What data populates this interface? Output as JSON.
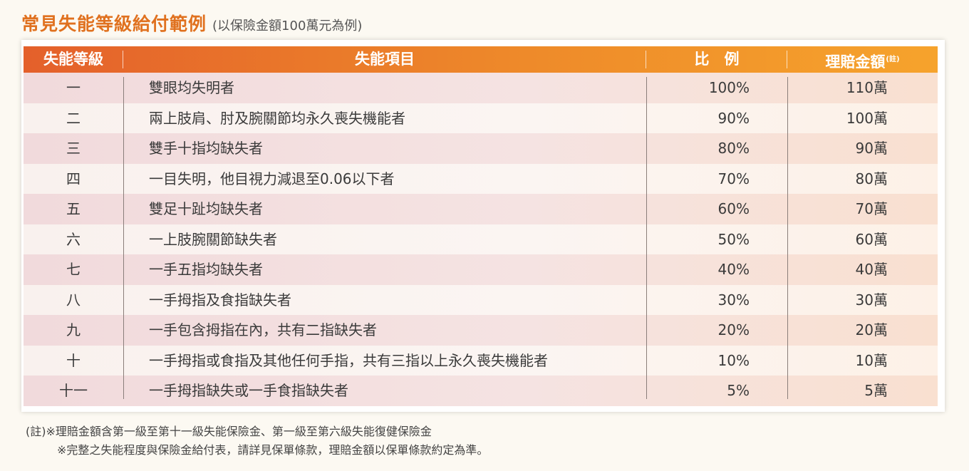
{
  "title": {
    "main": "常見失能等級給付範例",
    "sub": "(以保險金額100萬元為例)"
  },
  "table": {
    "headers": {
      "level": "失能等級",
      "item": "失能項目",
      "ratio": "比　例",
      "amount": "理賠金額",
      "amount_note": "(註)"
    },
    "rows": [
      {
        "level": "一",
        "item": "雙眼均失明者",
        "ratio": "100%",
        "amount": "110萬"
      },
      {
        "level": "二",
        "item": "兩上肢肩、肘及腕關節均永久喪失機能者",
        "ratio": "90%",
        "amount": "100萬"
      },
      {
        "level": "三",
        "item": "雙手十指均缺失者",
        "ratio": "80%",
        "amount": "90萬"
      },
      {
        "level": "四",
        "item": "一目失明，他目視力減退至0.06以下者",
        "ratio": "70%",
        "amount": "80萬"
      },
      {
        "level": "五",
        "item": "雙足十趾均缺失者",
        "ratio": "60%",
        "amount": "70萬"
      },
      {
        "level": "六",
        "item": "一上肢腕關節缺失者",
        "ratio": "50%",
        "amount": "60萬"
      },
      {
        "level": "七",
        "item": "一手五指均缺失者",
        "ratio": "40%",
        "amount": "40萬"
      },
      {
        "level": "八",
        "item": "一手拇指及食指缺失者",
        "ratio": "30%",
        "amount": "30萬"
      },
      {
        "level": "九",
        "item": "一手包含拇指在內，共有二指缺失者",
        "ratio": "20%",
        "amount": "20萬"
      },
      {
        "level": "十",
        "item": "一手拇指或食指及其他任何手指，共有三指以上永久喪失機能者",
        "ratio": "10%",
        "amount": "10萬"
      },
      {
        "level": "十一",
        "item": "一手拇指缺失或一手食指缺失者",
        "ratio": "5%",
        "amount": "5萬"
      }
    ]
  },
  "notes": {
    "line1": "(註)※理賠金額含第一級至第十一級失能保險金、第一級至第六級失能復健保險金",
    "line2": "※完整之失能程度與保險金給付表，請詳見保單條款，理賠金額以保單條款約定為準。"
  },
  "colors": {
    "accent": "#e0711f",
    "header_start": "#e4602b",
    "header_end": "#f6a32c"
  }
}
